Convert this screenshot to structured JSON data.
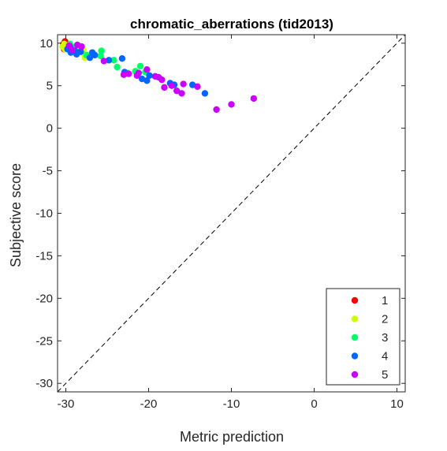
{
  "chart_data": {
    "type": "scatter",
    "title": "chromatic_aberrations (tid2013)",
    "xlabel": "Metric prediction",
    "ylabel": "Subjective score",
    "xlim": [
      -31,
      11
    ],
    "ylim": [
      -31,
      11
    ],
    "xticks": [
      -30,
      -20,
      -10,
      0,
      10
    ],
    "yticks": [
      10,
      5,
      0,
      -5,
      -10,
      -15,
      -20,
      -25,
      -30
    ],
    "reference_line": {
      "style": "dashed",
      "x": [
        -31,
        11
      ],
      "y": [
        -31,
        11
      ]
    },
    "box": true,
    "grid": false,
    "legend": {
      "position": "bottom-right"
    },
    "series": [
      {
        "name": "1",
        "color": "#ff0000",
        "points": [
          [
            -30.2,
            9.5
          ],
          [
            -30.1,
            9.8
          ],
          [
            -30.0,
            10.0
          ],
          [
            -29.9,
            9.7
          ],
          [
            -30.3,
            9.9
          ],
          [
            -30.0,
            9.4
          ],
          [
            -29.8,
            9.9
          ],
          [
            -30.1,
            10.2
          ],
          [
            -29.9,
            9.6
          ],
          [
            -30.2,
            9.3
          ],
          [
            -29.7,
            9.8
          ],
          [
            -30.0,
            9.6
          ]
        ]
      },
      {
        "name": "2",
        "color": "#ccff00",
        "points": [
          [
            -30.4,
            9.6
          ],
          [
            -30.2,
            9.9
          ],
          [
            -29.6,
            9.4
          ],
          [
            -28.5,
            9.5
          ],
          [
            -28.0,
            8.9
          ],
          [
            -27.7,
            8.3
          ],
          [
            -27.9,
            9.2
          ],
          [
            -30.1,
            9.3
          ]
        ]
      },
      {
        "name": "3",
        "color": "#00ff66",
        "points": [
          [
            -29.5,
            9.9
          ],
          [
            -29.0,
            9.5
          ],
          [
            -28.3,
            9.0
          ],
          [
            -27.5,
            8.6
          ],
          [
            -25.7,
            9.1
          ],
          [
            -25.8,
            8.5
          ],
          [
            -23.8,
            7.2
          ],
          [
            -21.0,
            7.3
          ],
          [
            -20.4,
            6.6
          ],
          [
            -21.6,
            6.7
          ],
          [
            -22.6,
            6.5
          ],
          [
            -24.2,
            8.0
          ]
        ]
      },
      {
        "name": "4",
        "color": "#0066ff",
        "points": [
          [
            -29.8,
            9.3
          ],
          [
            -29.4,
            8.9
          ],
          [
            -28.9,
            9.1
          ],
          [
            -28.2,
            9.0
          ],
          [
            -27.1,
            8.3
          ],
          [
            -26.8,
            8.9
          ],
          [
            -26.5,
            8.6
          ],
          [
            -24.8,
            8.0
          ],
          [
            -23.2,
            8.2
          ],
          [
            -22.9,
            6.6
          ],
          [
            -20.8,
            5.8
          ],
          [
            -20.2,
            5.6
          ],
          [
            -19.9,
            6.2
          ],
          [
            -17.4,
            5.3
          ],
          [
            -16.9,
            5.1
          ],
          [
            -14.7,
            5.1
          ],
          [
            -13.2,
            4.1
          ],
          [
            -29.5,
            9.6
          ],
          [
            -28.7,
            8.7
          ]
        ]
      },
      {
        "name": "5",
        "color": "#cc00ff",
        "points": [
          [
            -29.6,
            9.7
          ],
          [
            -29.2,
            9.2
          ],
          [
            -28.6,
            9.8
          ],
          [
            -28.1,
            9.6
          ],
          [
            -25.4,
            7.9
          ],
          [
            -23.0,
            6.3
          ],
          [
            -22.4,
            6.4
          ],
          [
            -21.4,
            6.2
          ],
          [
            -20.2,
            6.9
          ],
          [
            -19.2,
            6.1
          ],
          [
            -18.8,
            6.0
          ],
          [
            -18.4,
            5.7
          ],
          [
            -18.1,
            4.8
          ],
          [
            -17.2,
            5.0
          ],
          [
            -16.6,
            4.4
          ],
          [
            -16.0,
            4.1
          ],
          [
            -15.8,
            5.2
          ],
          [
            -14.1,
            4.9
          ],
          [
            -11.8,
            2.2
          ],
          [
            -10.0,
            2.8
          ],
          [
            -7.3,
            3.5
          ],
          [
            -21.2,
            6.5
          ]
        ]
      }
    ]
  }
}
